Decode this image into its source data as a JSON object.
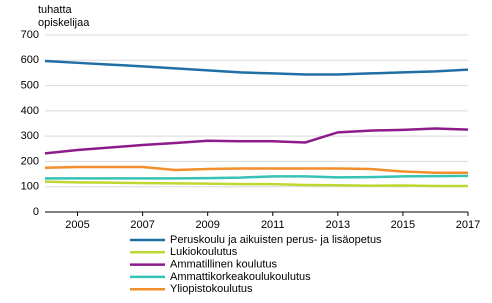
{
  "chart_data": {
    "type": "line",
    "y_label": [
      "tuhatta",
      "opiskelijaa"
    ],
    "x": [
      2004,
      2005,
      2006,
      2007,
      2008,
      2009,
      2010,
      2011,
      2012,
      2013,
      2014,
      2015,
      2016,
      2017
    ],
    "xlim": [
      2004,
      2017
    ],
    "xticks": [
      2005,
      2007,
      2009,
      2011,
      2013,
      2015,
      2017
    ],
    "ylim": [
      0,
      700
    ],
    "yticks": [
      0,
      100,
      200,
      300,
      400,
      500,
      600,
      700
    ],
    "grid": true,
    "series": [
      {
        "name": "Peruskoulu ja aikuisten perus- ja lisäopetus",
        "color": "#1f6fa5",
        "values": [
          597,
          590,
          583,
          576,
          568,
          560,
          552,
          548,
          544,
          544,
          548,
          552,
          556,
          563
        ]
      },
      {
        "name": "Lukiokoulutus",
        "color": "#bfd730",
        "values": [
          120,
          117,
          116,
          114,
          113,
          112,
          110,
          110,
          107,
          106,
          104,
          105,
          103,
          103
        ]
      },
      {
        "name": "Ammatillinen koulutus",
        "color": "#8e1b8a",
        "values": [
          232,
          245,
          255,
          265,
          273,
          282,
          280,
          280,
          275,
          315,
          322,
          325,
          330,
          326
        ]
      },
      {
        "name": "Ammattikorkeakoulukoulutus",
        "color": "#36c2b4",
        "values": [
          133,
          133,
          133,
          133,
          133,
          134,
          136,
          141,
          141,
          137,
          138,
          141,
          142,
          143
        ]
      },
      {
        "name": "Yliopistokoulutus",
        "color": "#f28e2b",
        "values": [
          175,
          178,
          178,
          178,
          166,
          170,
          172,
          172,
          172,
          172,
          170,
          160,
          155,
          155
        ]
      }
    ]
  }
}
